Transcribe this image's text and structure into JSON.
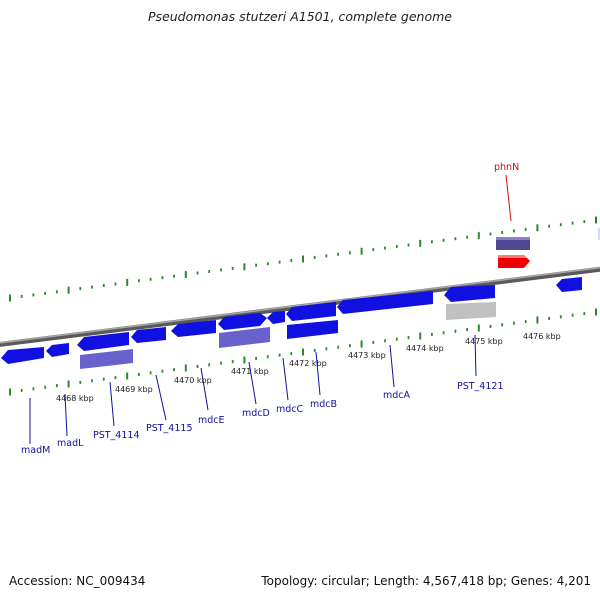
{
  "title": "Pseudomonas stutzeri A1501, complete genome",
  "accession": "Accession: NC_009434",
  "topology": "Topology: circular; Length: 4,567,418 bp; Genes: 4,201",
  "colors": {
    "forward_gene": "#1010e0",
    "rna_gene": "#6a62cc",
    "pseudo_gene": "#c0c0c0",
    "highlight_gene": "#ee0000",
    "upper_rna": "#4e4690",
    "backbone": "#7a7a7a",
    "ticks": "#2a8a2a",
    "label_blue": "#1010a0",
    "label_red": "#cc1010"
  },
  "ruler": [
    "4468 kbp",
    "4469 kbp",
    "4470 kbp",
    "4471 kbp",
    "4472 kbp",
    "4473 kbp",
    "4474 kbp",
    "4475 kbp",
    "4476 kbp"
  ],
  "genes": [
    "madM",
    "madL",
    "PST_4114",
    "PST_4115",
    "mdcE",
    "mdcD",
    "mdcC",
    "mdcB",
    "mdcA",
    "PST_4121",
    "phnN"
  ]
}
